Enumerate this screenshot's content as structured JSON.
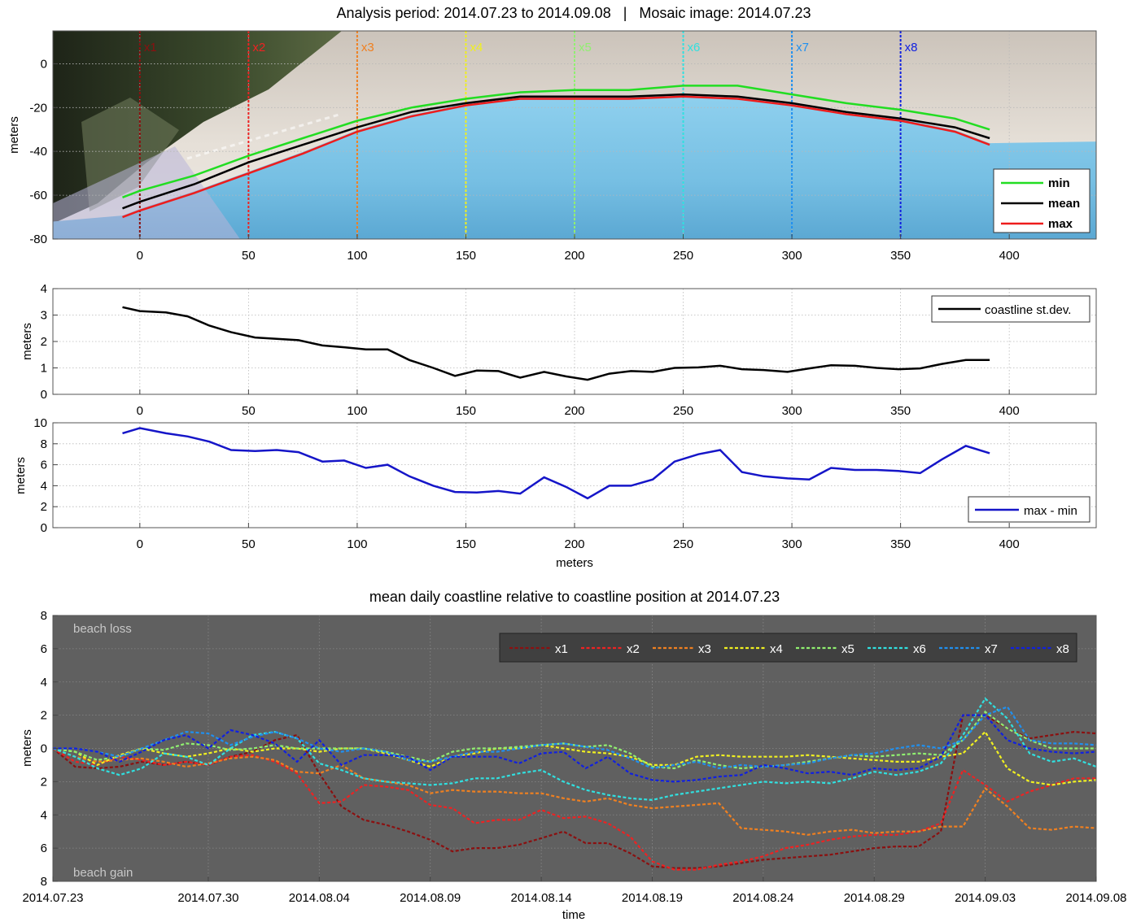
{
  "figure_title": "Analysis period: 2014.07.23 to 2014.09.08   |   Mosaic image: 2014.07.23",
  "colors": {
    "min": "#22dd22",
    "mean": "#000000",
    "max": "#ee1c1c",
    "std": "#000000",
    "range": "#1515c8",
    "x1": "#8b1010",
    "x2": "#ee2222",
    "x3": "#f08020",
    "x4": "#f0f020",
    "x5": "#90f070",
    "x6": "#30e0e0",
    "x7": "#2090f0",
    "x8": "#1020e0",
    "dark_bg": "#606060"
  },
  "chart_data": [
    {
      "type": "line",
      "ylabel": "meters",
      "xlim": [
        -40,
        440
      ],
      "ylim": [
        -80,
        15
      ],
      "xticks": [
        0,
        50,
        100,
        150,
        200,
        250,
        300,
        350,
        400
      ],
      "yticks": [
        -80,
        -60,
        -40,
        -20,
        0
      ],
      "legend": "bottom-right",
      "transects": [
        {
          "name": "x1",
          "x": 0
        },
        {
          "name": "x2",
          "x": 50
        },
        {
          "name": "x3",
          "x": 100
        },
        {
          "name": "x4",
          "x": 150
        },
        {
          "name": "x5",
          "x": 200
        },
        {
          "name": "x6",
          "x": 250
        },
        {
          "name": "x7",
          "x": 300
        },
        {
          "name": "x8",
          "x": 350
        }
      ],
      "x": [
        -8,
        0,
        25,
        50,
        75,
        100,
        125,
        150,
        175,
        200,
        225,
        250,
        275,
        300,
        325,
        350,
        375,
        391
      ],
      "series": [
        {
          "name": "min",
          "values": [
            -61,
            -58,
            -51,
            -42,
            -34,
            -26,
            -20,
            -16,
            -13,
            -12,
            -12,
            -10,
            -10,
            -14,
            -18,
            -21,
            -25,
            -30
          ]
        },
        {
          "name": "mean",
          "values": [
            -66,
            -63,
            -55,
            -45,
            -37,
            -29,
            -22,
            -18,
            -15,
            -15,
            -15,
            -14,
            -15,
            -18,
            -22,
            -25,
            -29,
            -34
          ]
        },
        {
          "name": "max",
          "values": [
            -70,
            -67,
            -59,
            -50,
            -41,
            -31,
            -24,
            -19,
            -16,
            -16,
            -16,
            -15,
            -16,
            -19,
            -23,
            -26,
            -31,
            -37
          ]
        }
      ]
    },
    {
      "type": "line",
      "ylabel": "meters",
      "xlim": [
        -40,
        440
      ],
      "ylim": [
        0,
        4
      ],
      "xticks": [
        0,
        50,
        100,
        150,
        200,
        250,
        300,
        350,
        400
      ],
      "yticks": [
        0,
        1,
        2,
        3,
        4
      ],
      "legend": "top-right",
      "x": [
        -8,
        0,
        12,
        22,
        32,
        42,
        53,
        63,
        73,
        84,
        94,
        104,
        114,
        124,
        135,
        145,
        155,
        165,
        175,
        186,
        196,
        206,
        216,
        226,
        236,
        246,
        257,
        267,
        277,
        287,
        298,
        308,
        318,
        329,
        339,
        349,
        359,
        369,
        380,
        391
      ],
      "series": [
        {
          "name": "coastline st.dev.",
          "values": [
            3.3,
            3.15,
            3.1,
            2.95,
            2.6,
            2.35,
            2.15,
            2.1,
            2.05,
            1.85,
            1.78,
            1.7,
            1.7,
            1.3,
            1.0,
            0.7,
            0.9,
            0.88,
            0.63,
            0.85,
            0.68,
            0.55,
            0.78,
            0.88,
            0.85,
            1.0,
            1.02,
            1.08,
            0.95,
            0.92,
            0.85,
            0.98,
            1.1,
            1.08,
            1.0,
            0.95,
            0.98,
            1.15,
            1.3,
            1.3
          ]
        }
      ]
    },
    {
      "type": "line",
      "ylabel": "meters",
      "xlabel": "meters",
      "xlim": [
        -40,
        440
      ],
      "ylim": [
        0,
        10
      ],
      "xticks": [
        0,
        50,
        100,
        150,
        200,
        250,
        300,
        350,
        400
      ],
      "yticks": [
        0,
        2,
        4,
        6,
        8,
        10
      ],
      "legend": "bottom-right",
      "x": [
        -8,
        0,
        12,
        22,
        32,
        42,
        53,
        63,
        73,
        84,
        94,
        104,
        114,
        124,
        135,
        145,
        155,
        165,
        175,
        186,
        196,
        206,
        216,
        226,
        236,
        246,
        257,
        267,
        277,
        287,
        298,
        308,
        318,
        329,
        339,
        349,
        359,
        369,
        380,
        391
      ],
      "series": [
        {
          "name": "max - min",
          "values": [
            9.0,
            9.5,
            9.0,
            8.7,
            8.2,
            7.4,
            7.3,
            7.4,
            7.2,
            6.3,
            6.4,
            5.7,
            6.0,
            4.9,
            4.0,
            3.4,
            3.35,
            3.5,
            3.25,
            4.8,
            3.9,
            2.8,
            4.0,
            4.0,
            4.6,
            6.3,
            7.0,
            7.4,
            5.3,
            4.9,
            4.7,
            4.6,
            5.7,
            5.5,
            5.5,
            5.4,
            5.2,
            6.5,
            7.8,
            7.1
          ]
        }
      ]
    },
    {
      "type": "line",
      "title": "mean daily coastline relative to coastline position at 2014.07.23",
      "ylabel": "meters",
      "xlabel": "time",
      "xlim": [
        0,
        47
      ],
      "ylim": [
        -8,
        8
      ],
      "y_inverted": true,
      "grid": true,
      "background": "dark",
      "legend": "top-right",
      "xticks": [
        {
          "day": 0,
          "label": "2014.07.23"
        },
        {
          "day": 7,
          "label": "2014.07.30"
        },
        {
          "day": 12,
          "label": "2014.08.04"
        },
        {
          "day": 17,
          "label": "2014.08.09"
        },
        {
          "day": 22,
          "label": "2014.08.14"
        },
        {
          "day": 27,
          "label": "2014.08.19"
        },
        {
          "day": 32,
          "label": "2014.08.24"
        },
        {
          "day": 37,
          "label": "2014.08.29"
        },
        {
          "day": 42,
          "label": "2014.09.03"
        },
        {
          "day": 47,
          "label": "2014.09.08"
        }
      ],
      "ytick_labels": [
        {
          "value": -8,
          "label": "8"
        },
        {
          "value": -6,
          "label": "6"
        },
        {
          "value": -4,
          "label": "4"
        },
        {
          "value": -2,
          "label": "2"
        },
        {
          "value": 0,
          "label": "0"
        },
        {
          "value": 2,
          "label": "2"
        },
        {
          "value": 4,
          "label": "4"
        },
        {
          "value": 6,
          "label": "6"
        },
        {
          "value": 8,
          "label": "8"
        }
      ],
      "annotations": [
        "beach loss",
        "beach gain"
      ],
      "x_days": [
        0,
        1,
        2,
        3,
        4,
        5,
        6,
        7,
        8,
        9,
        10,
        11,
        12,
        13,
        14,
        15,
        16,
        17,
        18,
        19,
        20,
        21,
        22,
        23,
        24,
        25,
        26,
        27,
        28,
        29,
        30,
        31,
        32,
        33,
        34,
        35,
        36,
        37,
        38,
        39,
        40,
        41,
        42,
        43,
        44,
        45,
        46,
        47
      ],
      "series": [
        {
          "name": "x1",
          "values": [
            0,
            1.1,
            1.2,
            1.1,
            0.8,
            1.0,
            0.8,
            1.0,
            0.5,
            0.2,
            -0.5,
            -0.8,
            1.5,
            3.5,
            4.3,
            4.6,
            5.0,
            5.5,
            6.2,
            6.0,
            6.0,
            5.8,
            5.4,
            5.0,
            5.7,
            5.7,
            6.3,
            7.1,
            7.2,
            7.2,
            7.1,
            6.9,
            6.7,
            6.6,
            6.5,
            6.4,
            6.2,
            6.0,
            5.9,
            5.9,
            5.0,
            -2.0,
            -2.0,
            -1.2,
            -0.6,
            -0.8,
            -1.0,
            -0.9
          ]
        },
        {
          "name": "x2",
          "values": [
            0,
            0.8,
            1.0,
            0.5,
            0.7,
            1.0,
            0.8,
            1.0,
            0.5,
            0.4,
            0.8,
            1.5,
            3.3,
            3.2,
            2.2,
            2.3,
            2.5,
            3.4,
            3.6,
            4.5,
            4.3,
            4.3,
            3.7,
            4.2,
            4.1,
            4.5,
            5.3,
            6.8,
            7.3,
            7.3,
            7.0,
            6.8,
            6.5,
            6.0,
            5.8,
            5.5,
            5.3,
            5.2,
            5.2,
            5.0,
            4.5,
            1.3,
            2.2,
            3.2,
            2.6,
            2.2,
            1.8,
            1.8
          ]
        },
        {
          "name": "x3",
          "values": [
            0,
            0.5,
            0.8,
            0.7,
            0.6,
            0.8,
            1.1,
            0.9,
            0.6,
            0.5,
            0.7,
            1.4,
            1.5,
            1.0,
            1.8,
            2.0,
            2.2,
            2.7,
            2.5,
            2.6,
            2.6,
            2.7,
            2.7,
            3.0,
            3.2,
            3.0,
            3.4,
            3.6,
            3.5,
            3.4,
            3.3,
            4.8,
            4.9,
            5.0,
            5.2,
            5.0,
            4.9,
            5.1,
            5.0,
            5.0,
            4.7,
            4.7,
            2.4,
            3.5,
            4.8,
            4.9,
            4.7,
            4.8
          ]
        },
        {
          "name": "x4",
          "values": [
            0,
            0.2,
            1.0,
            0.4,
            0.0,
            0.3,
            0.5,
            0.3,
            0.0,
            0.2,
            0.0,
            0.0,
            0.2,
            0.0,
            0.0,
            0.3,
            0.7,
            1.1,
            0.5,
            0.3,
            0.0,
            0.0,
            -0.2,
            0.0,
            0.2,
            0.3,
            0.5,
            1.0,
            1.0,
            0.5,
            0.4,
            0.5,
            0.5,
            0.5,
            0.4,
            0.5,
            0.6,
            0.7,
            0.8,
            0.8,
            0.5,
            0.3,
            -1.0,
            1.2,
            2.0,
            2.2,
            2.0,
            1.9
          ]
        },
        {
          "name": "x5",
          "values": [
            0,
            0.2,
            0.7,
            0.5,
            0.0,
            0.1,
            -0.3,
            -0.2,
            0.1,
            0.0,
            -0.2,
            0.0,
            0.0,
            0.0,
            0.0,
            0.2,
            0.5,
            0.8,
            0.2,
            0.0,
            0.0,
            -0.1,
            -0.2,
            -0.3,
            -0.1,
            -0.2,
            0.3,
            1.1,
            1.2,
            0.7,
            1.0,
            1.2,
            1.1,
            1.0,
            0.8,
            0.6,
            0.4,
            0.5,
            0.4,
            0.3,
            0.4,
            -0.5,
            -2.2,
            -1.2,
            -0.5,
            0.0,
            0.0,
            0.0
          ]
        },
        {
          "name": "x6",
          "values": [
            0,
            0.5,
            1.2,
            1.6,
            1.2,
            0.3,
            0.5,
            1.0,
            0.0,
            -0.8,
            -1.0,
            -0.6,
            0.9,
            1.3,
            1.8,
            2.0,
            2.1,
            2.2,
            2.1,
            1.8,
            1.8,
            1.5,
            1.3,
            2.0,
            2.5,
            2.8,
            3.0,
            3.1,
            2.8,
            2.6,
            2.4,
            2.2,
            2.0,
            2.1,
            2.0,
            2.1,
            1.8,
            1.4,
            1.6,
            1.4,
            0.9,
            -0.8,
            -3.0,
            -1.8,
            0.3,
            0.8,
            0.6,
            1.1
          ]
        },
        {
          "name": "x7",
          "values": [
            0,
            0.0,
            0.2,
            0.5,
            0.0,
            -0.5,
            -1.0,
            -0.9,
            -0.2,
            -0.7,
            -1.0,
            -0.6,
            0.0,
            0.2,
            0.0,
            0.2,
            0.7,
            0.8,
            0.5,
            0.2,
            0.2,
            0.0,
            -0.2,
            -0.3,
            -0.1,
            0.1,
            0.6,
            1.2,
            1.0,
            0.8,
            1.2,
            1.0,
            1.1,
            1.0,
            0.9,
            0.6,
            0.4,
            0.3,
            0.0,
            -0.2,
            0.0,
            -0.5,
            -2.0,
            -2.5,
            -0.5,
            -0.3,
            -0.3,
            -0.2
          ]
        },
        {
          "name": "x8",
          "values": [
            0,
            0.0,
            0.2,
            0.8,
            0.2,
            -0.5,
            -0.8,
            0.0,
            -1.1,
            -0.8,
            -0.3,
            0.8,
            -0.5,
            1.0,
            0.4,
            0.4,
            0.5,
            1.3,
            0.5,
            0.5,
            0.5,
            0.9,
            0.3,
            0.2,
            1.2,
            0.5,
            1.5,
            1.9,
            2.0,
            1.9,
            1.7,
            1.6,
            1.0,
            1.2,
            1.5,
            1.4,
            1.6,
            1.2,
            1.3,
            1.2,
            0.5,
            -2.0,
            -2.0,
            -0.5,
            0.0,
            0.2,
            0.3,
            0.2
          ]
        }
      ]
    }
  ]
}
